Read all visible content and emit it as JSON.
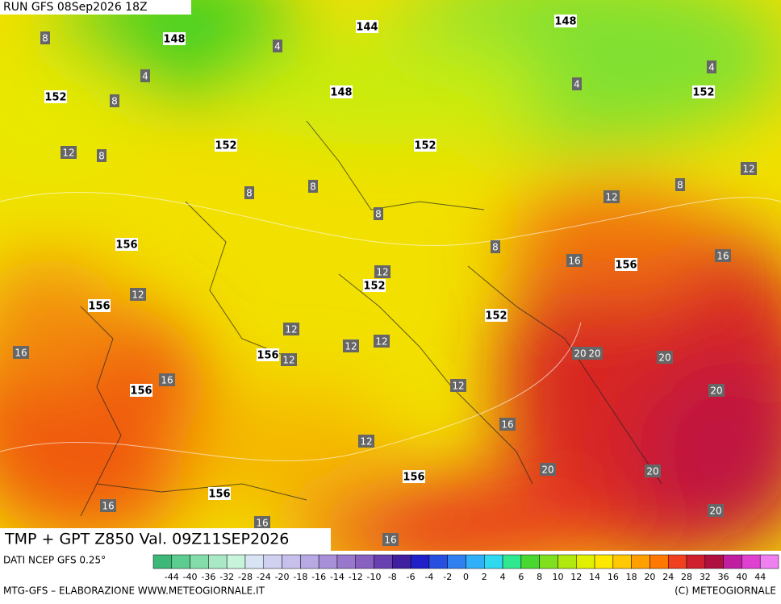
{
  "header": {
    "run": "RUN GFS 08Sep2026 18Z"
  },
  "map": {
    "title": "TMP + GPT Z850 Val. 09Z11SEP2026",
    "geopotential_labels": [
      148,
      144,
      148,
      152,
      148,
      152,
      152,
      152,
      156,
      156,
      152,
      156,
      152,
      156,
      156,
      156,
      156
    ],
    "temperature_labels": [
      8,
      4,
      4,
      8,
      4,
      4,
      12,
      8,
      12,
      8,
      8,
      12,
      8,
      8,
      8,
      16,
      16,
      12,
      12,
      16,
      12,
      12,
      12,
      12,
      20,
      20,
      20,
      16,
      12,
      20,
      16,
      12,
      20,
      20,
      16,
      16,
      20,
      16
    ]
  },
  "legend": {
    "source": "DATI NCEP GFS 0.25°",
    "ticks": [
      -44,
      -40,
      -36,
      -32,
      -28,
      -24,
      -20,
      -18,
      -16,
      -14,
      -12,
      -10,
      -8,
      -6,
      -4,
      -2,
      0,
      2,
      4,
      6,
      8,
      10,
      12,
      14,
      16,
      18,
      20,
      24,
      28,
      32,
      36,
      40,
      44
    ],
    "colors": [
      "#3cb878",
      "#5ccc90",
      "#84dcaa",
      "#a8e8c4",
      "#c8f4dc",
      "#d8e4f4",
      "#d0d0f0",
      "#c8c0ec",
      "#b8a8e4",
      "#a890d8",
      "#9878cc",
      "#8860c0",
      "#6840b0",
      "#4020a0",
      "#2020c8",
      "#2850e0",
      "#3080f0",
      "#30b0f8",
      "#30d8f0",
      "#30e890",
      "#48d830",
      "#80e020",
      "#b0e810",
      "#e0f000",
      "#ffe800",
      "#ffc800",
      "#ffa000",
      "#ff7800",
      "#f04020",
      "#d02030",
      "#b01040",
      "#c020a0",
      "#e040d0",
      "#f080f0"
    ]
  },
  "footer": {
    "credit": "MTG-GFS – ELABORAZIONE WWW.METEOGIORNALE.IT",
    "copyright": "(C) METEOGIORNALE"
  }
}
